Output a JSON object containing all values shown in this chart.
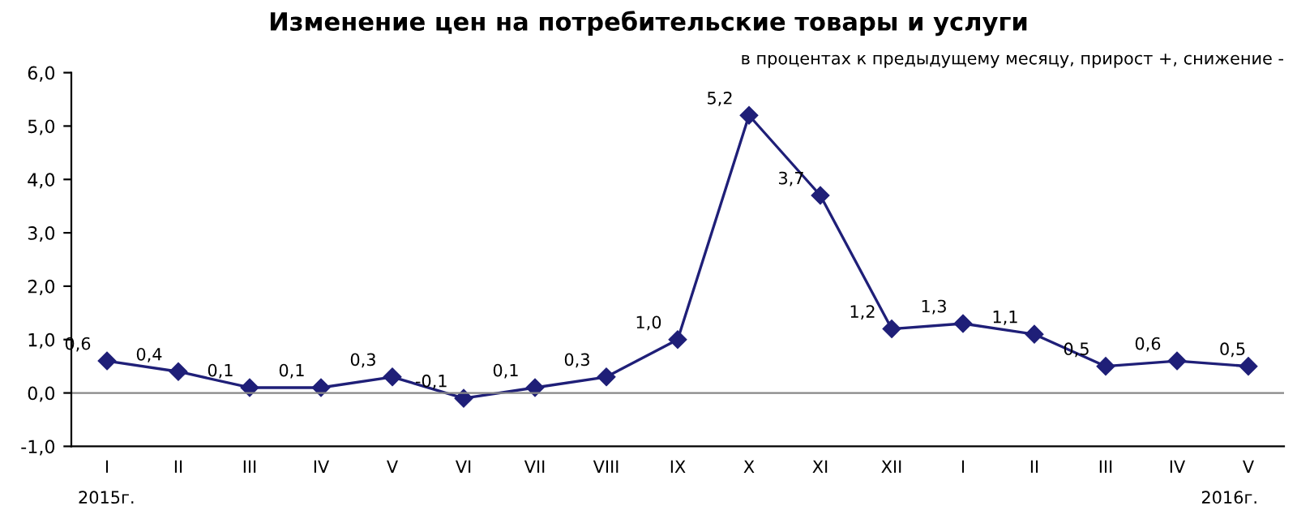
{
  "chart_data": {
    "type": "line",
    "title": "Изменение цен на потребительские товары и услуги",
    "subtitle": "в процентах к предыдущему месяцу, прирост +, снижение -",
    "categories": [
      "I",
      "II",
      "III",
      "IV",
      "V",
      "VI",
      "VII",
      "VIII",
      "IX",
      "X",
      "XI",
      "XII",
      "I",
      "II",
      "III",
      "IV",
      "V"
    ],
    "series": [
      {
        "color": "#1f1f78",
        "values": [
          0.6,
          0.4,
          0.1,
          0.1,
          0.3,
          -0.1,
          0.1,
          0.3,
          1.0,
          5.2,
          3.7,
          1.2,
          1.3,
          1.1,
          0.5,
          0.6,
          0.5
        ],
        "value_labels": [
          "0,6",
          "0,4",
          "0,1",
          "0,1",
          "0,3",
          "-0,1",
          "0,1",
          "0,3",
          "1,0",
          "5,2",
          "3,7",
          "1,2",
          "1,3",
          "1,1",
          "0,5",
          "0,6",
          "0,5"
        ]
      }
    ],
    "ylim": [
      -1.0,
      6.0
    ],
    "yticks": [
      {
        "value": -1.0,
        "label": "-1,0"
      },
      {
        "value": 0.0,
        "label": "0,0"
      },
      {
        "value": 1.0,
        "label": "1,0"
      },
      {
        "value": 2.0,
        "label": "2,0"
      },
      {
        "value": 3.0,
        "label": "3,0"
      },
      {
        "value": 4.0,
        "label": "4,0"
      },
      {
        "value": 5.0,
        "label": "5,0"
      },
      {
        "value": 6.0,
        "label": "6,0"
      }
    ],
    "annotations": [
      "2015г.",
      "2016г."
    ],
    "ref_lines": [
      {
        "axis": "y",
        "value": 0.0,
        "color": "#888888"
      }
    ],
    "marker": "diamond",
    "line_style": "solid",
    "grid": false,
    "legend": false
  }
}
